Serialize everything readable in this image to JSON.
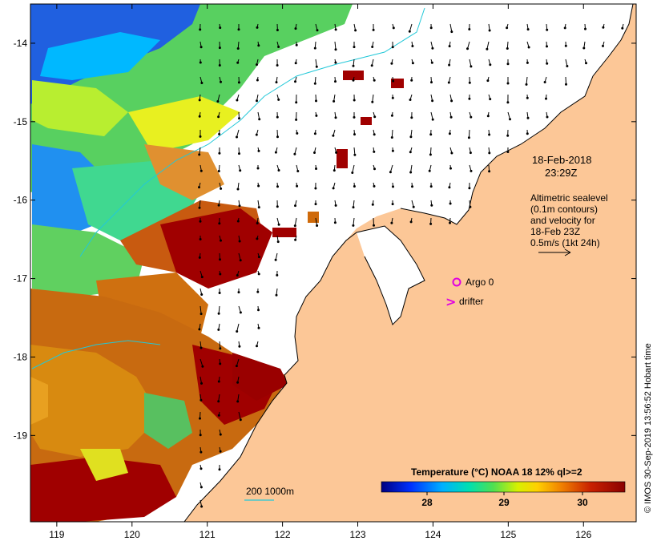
{
  "map": {
    "x_ticks": [
      "119",
      "120",
      "121",
      "122",
      "123",
      "124",
      "125",
      "126"
    ],
    "y_ticks": [
      "-14",
      "-15",
      "-16",
      "-17",
      "-18",
      "-19"
    ],
    "lon_range": [
      118.65,
      126.7
    ],
    "lat_range": [
      -20.1,
      -13.5
    ],
    "colors": {
      "land": "#fcc797",
      "ocean_nodata": "#ffffff",
      "hot": "#a00000",
      "orange": "#cf6a0a",
      "contour": "#22c8d8",
      "argo": "#e000e0"
    }
  },
  "annotations": {
    "date": "18-Feb-2018",
    "time": "23:29Z",
    "altimetry_lines": [
      "Altimetric sealevel",
      "(0.1m contours)",
      "and velocity for",
      "18-Feb 23Z",
      "0.5m/s (1kt 24h)"
    ],
    "argo_label": "Argo 0",
    "drifter_label": "drifter",
    "drifter_marker": ">",
    "depth_legend": "200  1000m"
  },
  "colorbar": {
    "title": "Temperature (°C) NOAA 18 12% ql>=2",
    "ticks": [
      "28",
      "29",
      "30"
    ]
  },
  "credit": "© IMOS 30-Sep-2019 13:56:52 Hobart time"
}
